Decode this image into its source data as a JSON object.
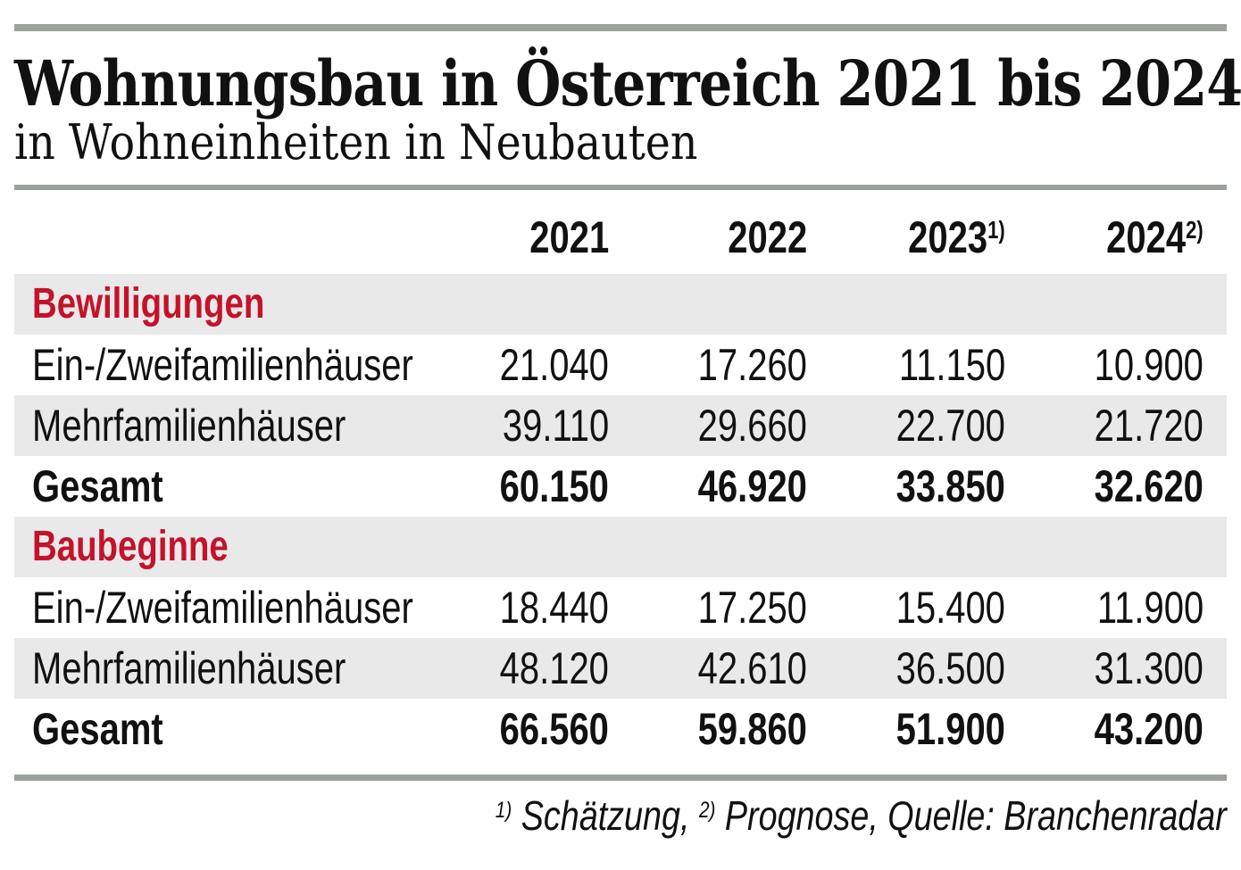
{
  "colors": {
    "accent_red": "#c3132b",
    "bar_green_gray": "#9ba29b",
    "row_shade_gray": "#e9e9e9",
    "text": "#111111"
  },
  "header": {
    "title": "Wohnungsbau in Österreich 2021 bis 2024",
    "subtitle": "in Wohneinheiten in Neubauten"
  },
  "table": {
    "columns": [
      {
        "label": "2021",
        "sup": ""
      },
      {
        "label": "2022",
        "sup": ""
      },
      {
        "label": "2023",
        "sup": "1)"
      },
      {
        "label": "2024",
        "sup": "2)"
      }
    ],
    "sections": [
      {
        "title": "Bewilligungen",
        "rows": [
          {
            "label": "Ein-/Zweifamilienhäuser",
            "values": [
              "21.040",
              "17.260",
              "11.150",
              "10.900"
            ]
          },
          {
            "label": "Mehrfamilienhäuser",
            "values": [
              "39.110",
              "29.660",
              "22.700",
              "21.720"
            ]
          },
          {
            "label": "Gesamt",
            "values": [
              "60.150",
              "46.920",
              "33.850",
              "32.620"
            ]
          }
        ]
      },
      {
        "title": "Baubeginne",
        "rows": [
          {
            "label": "Ein-/Zweifamilienhäuser",
            "values": [
              "18.440",
              "17.250",
              "15.400",
              "11.900"
            ]
          },
          {
            "label": "Mehrfamilienhäuser",
            "values": [
              "48.120",
              "42.610",
              "36.500",
              "31.300"
            ]
          },
          {
            "label": "Gesamt",
            "values": [
              "66.560",
              "59.860",
              "51.900",
              "43.200"
            ]
          }
        ]
      }
    ]
  },
  "footnote": {
    "sup1": "1)",
    "label1": "Schätzung,",
    "sup2": "2)",
    "label2": "Prognose, Quelle: Branchenradar"
  },
  "chart_data": {
    "type": "table",
    "title": "Wohnungsbau in Österreich 2021 bis 2024",
    "subtitle": "in Wohneinheiten in Neubauten",
    "columns": [
      "2021",
      "2022",
      "2023",
      "2024"
    ],
    "column_notes": {
      "2023": "1) Schätzung",
      "2024": "2) Prognose"
    },
    "sections": [
      {
        "name": "Bewilligungen",
        "rows": [
          {
            "label": "Ein-/Zweifamilienhäuser",
            "values": [
              21040,
              17260,
              11150,
              10900
            ]
          },
          {
            "label": "Mehrfamilienhäuser",
            "values": [
              39110,
              29660,
              22700,
              21720
            ]
          },
          {
            "label": "Gesamt",
            "values": [
              60150,
              46920,
              33850,
              32620
            ]
          }
        ]
      },
      {
        "name": "Baubeginne",
        "rows": [
          {
            "label": "Ein-/Zweifamilienhäuser",
            "values": [
              18440,
              17250,
              15400,
              11900
            ]
          },
          {
            "label": "Mehrfamilienhäuser",
            "values": [
              48120,
              42610,
              36500,
              31300
            ]
          },
          {
            "label": "Gesamt",
            "values": [
              66560,
              59860,
              51900,
              43200
            ]
          }
        ]
      }
    ],
    "source": "Branchenradar"
  }
}
